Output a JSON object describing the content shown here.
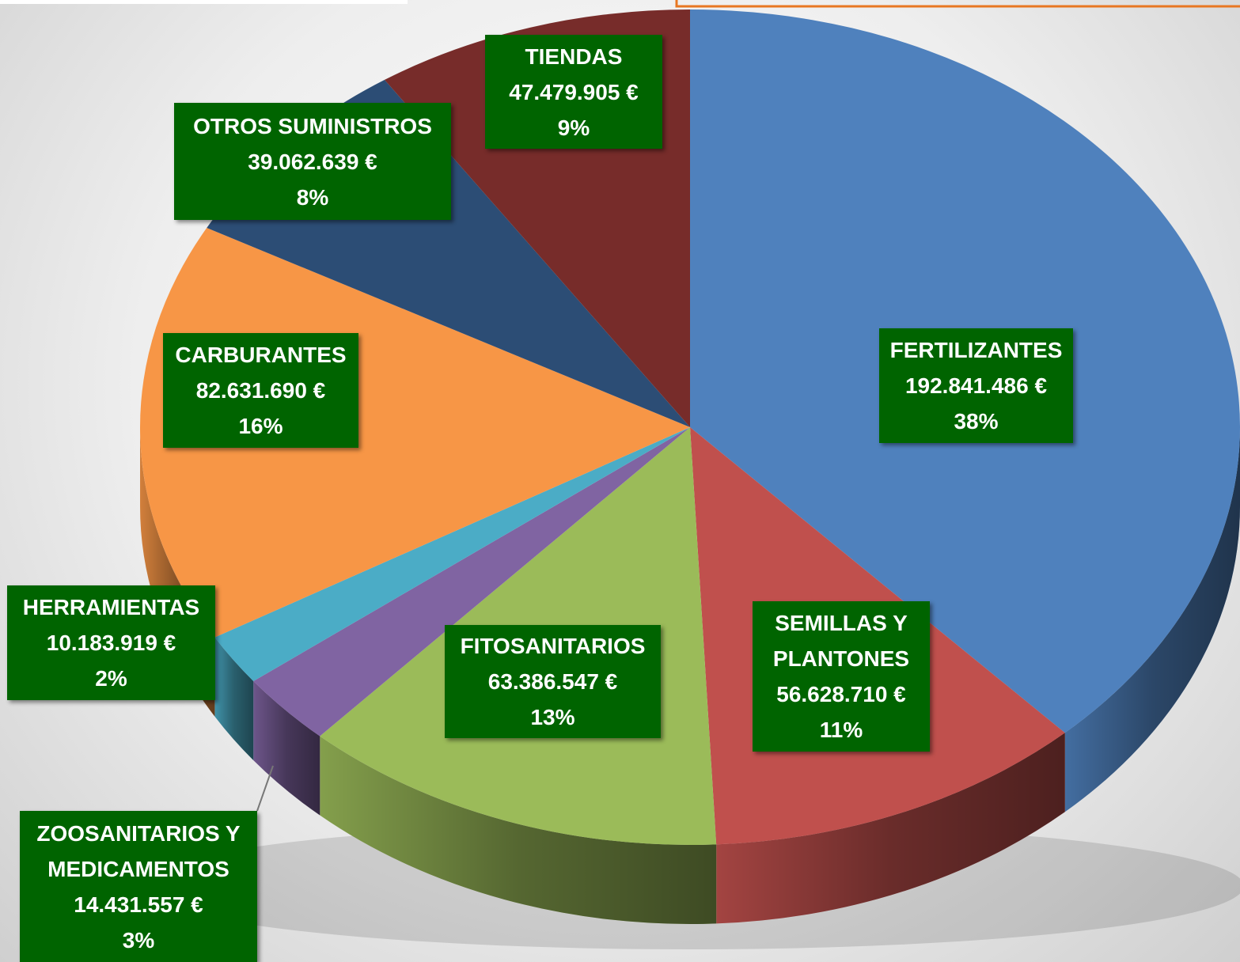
{
  "chart_data": {
    "type": "pie",
    "categories": [
      "FERTILIZANTES",
      "SEMILLAS Y PLANTONES",
      "FITOSANITARIOS",
      "ZOOSANITARIOS Y MEDICAMENTOS",
      "HERRAMIENTAS",
      "CARBURANTES",
      "OTROS SUMINISTROS",
      "TIENDAS"
    ],
    "values": [
      192841486,
      56628710,
      63386547,
      14431557,
      10183919,
      82631690,
      39062639,
      47479905
    ],
    "value_labels": [
      "192.841.486 €",
      "56.628.710 €",
      "63.386.547 €",
      "14.431.557 €",
      "10.183.919 €",
      "82.631.690 €",
      "39.062.639 €",
      "47.479.905 €"
    ],
    "percent_labels": [
      "38%",
      "11%",
      "13%",
      "3%",
      "2%",
      "16%",
      "8%",
      "9%"
    ],
    "colors": [
      "#4f81bd",
      "#c0504d",
      "#9bbb59",
      "#8064a2",
      "#4bacc6",
      "#f79646",
      "#2c4d75",
      "#772c2a"
    ]
  }
}
